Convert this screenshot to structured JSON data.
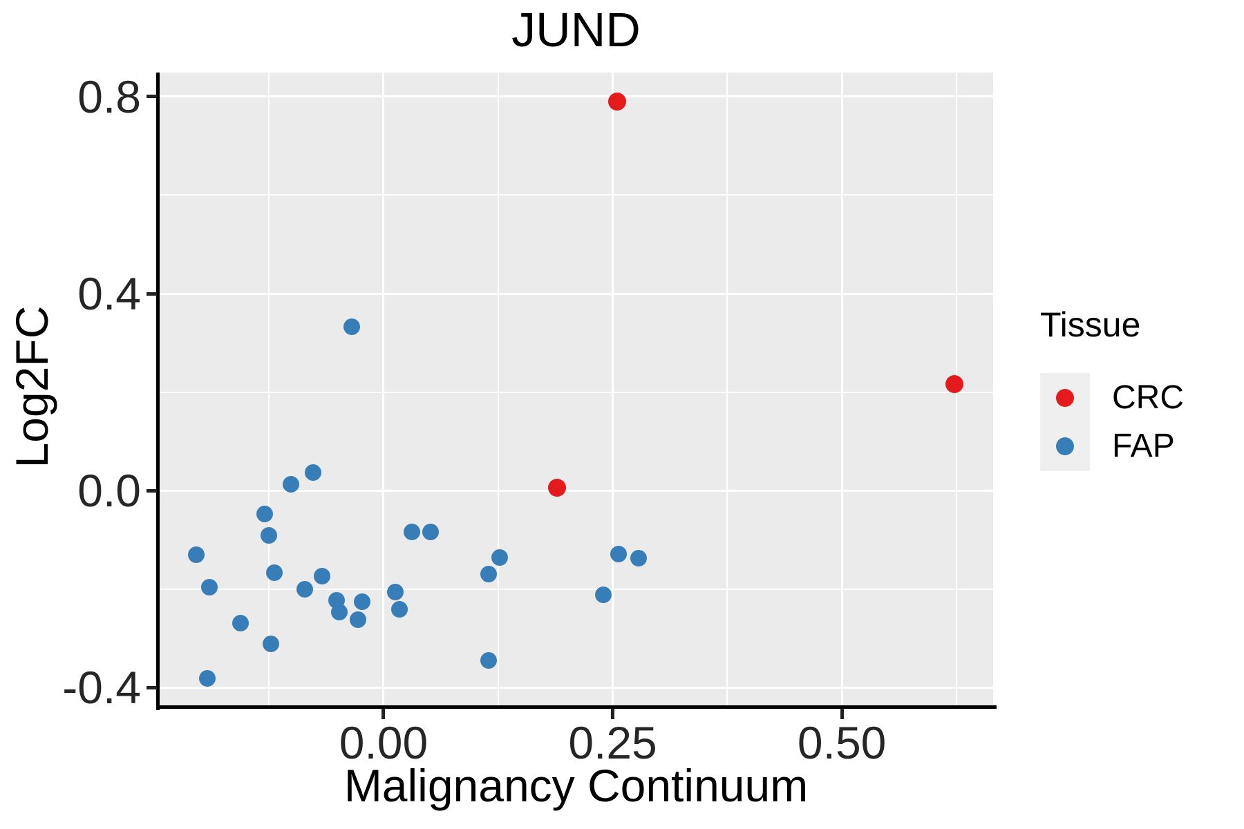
{
  "title": "JUND",
  "axes": {
    "x": {
      "label": "Malignancy Continuum",
      "major_ticks": [
        {
          "value": 0.0,
          "label": "0.00"
        },
        {
          "value": 0.25,
          "label": "0.25"
        },
        {
          "value": 0.5,
          "label": "0.50"
        }
      ],
      "minor_gridlines": [
        -0.125,
        0.125,
        0.375,
        0.625
      ],
      "domain": [
        -0.245,
        0.665
      ]
    },
    "y": {
      "label": "Log2FC",
      "major_ticks": [
        {
          "value": 0.8,
          "label": "0.8"
        },
        {
          "value": 0.4,
          "label": "0.4"
        },
        {
          "value": 0.0,
          "label": "0.0"
        },
        {
          "value": -0.4,
          "label": "-0.4"
        }
      ],
      "minor_gridlines": [
        0.6,
        0.2,
        -0.2
      ],
      "domain": [
        -0.439,
        0.849
      ]
    }
  },
  "legend": {
    "title": "Tissue",
    "position": "right",
    "entries": [
      {
        "label": "CRC",
        "color": "#E41A1C"
      },
      {
        "label": "FAP",
        "color": "#377EB8"
      }
    ]
  },
  "style": {
    "panel_background": "#EBEBEB",
    "gridline_color": "#FFFFFF",
    "legend_key_background": "#EFEFEF",
    "axis_color": "#000000"
  },
  "chart_data": {
    "type": "scatter",
    "title": "JUND",
    "xlabel": "Malignancy Continuum",
    "ylabel": "Log2FC",
    "xlim": [
      -0.245,
      0.665
    ],
    "ylim": [
      -0.439,
      0.849
    ],
    "grid": "major-and-minor",
    "legend_position": "right",
    "series": [
      {
        "name": "CRC",
        "color": "#E41A1C",
        "marker_radius": 13,
        "points": [
          [
            0.255,
            0.79
          ],
          [
            0.189,
            0.006
          ],
          [
            0.623,
            0.216
          ]
        ]
      },
      {
        "name": "FAP",
        "color": "#377EB8",
        "marker_radius": 12,
        "points": [
          [
            -0.204,
            -0.131
          ],
          [
            -0.19,
            -0.196
          ],
          [
            -0.192,
            -0.382
          ],
          [
            -0.156,
            -0.269
          ],
          [
            -0.13,
            -0.048
          ],
          [
            -0.125,
            -0.091
          ],
          [
            -0.119,
            -0.167
          ],
          [
            -0.123,
            -0.312
          ],
          [
            -0.101,
            0.013
          ],
          [
            -0.086,
            -0.201
          ],
          [
            -0.077,
            0.036
          ],
          [
            -0.067,
            -0.174
          ],
          [
            -0.051,
            -0.223
          ],
          [
            -0.048,
            -0.247
          ],
          [
            -0.035,
            0.333
          ],
          [
            -0.028,
            -0.262
          ],
          [
            -0.023,
            -0.226
          ],
          [
            0.013,
            -0.206
          ],
          [
            0.017,
            -0.241
          ],
          [
            0.031,
            -0.084
          ],
          [
            0.051,
            -0.084
          ],
          [
            0.115,
            -0.17
          ],
          [
            0.115,
            -0.345
          ],
          [
            0.127,
            -0.136
          ],
          [
            0.24,
            -0.212
          ],
          [
            0.256,
            -0.129
          ],
          [
            0.278,
            -0.138
          ]
        ]
      }
    ]
  }
}
